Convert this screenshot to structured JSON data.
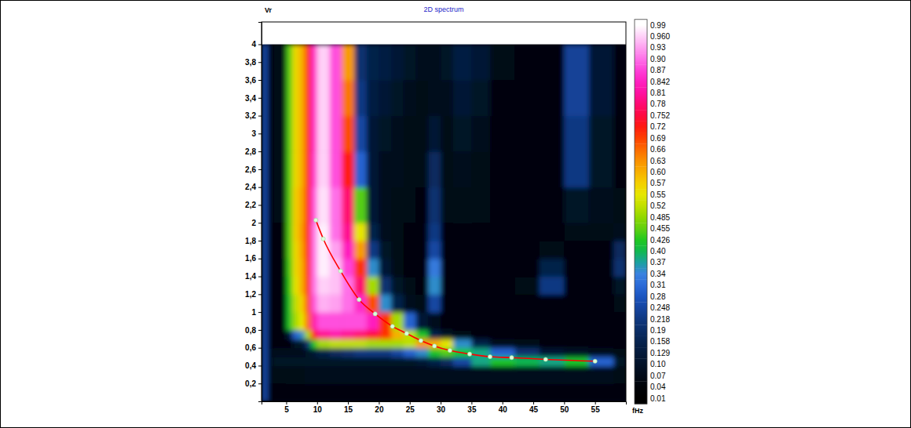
{
  "chart_data": {
    "type": "heatmap",
    "title": "2D spectrum",
    "x_label": "fHz",
    "y_label": "Vr",
    "xlim": [
      1,
      60
    ],
    "ylim": [
      0,
      4.25
    ],
    "xticks": [
      5,
      10,
      15,
      20,
      25,
      30,
      35,
      40,
      45,
      50,
      55
    ],
    "yticks": [
      {
        "value": 0.2,
        "label": "0,2"
      },
      {
        "value": 0.4,
        "label": "0,4"
      },
      {
        "value": 0.6,
        "label": "0,6"
      },
      {
        "value": 0.8,
        "label": "0,8"
      },
      1,
      {
        "value": 1.2,
        "label": "1,2"
      },
      {
        "value": 1.4,
        "label": "1,4"
      },
      {
        "value": 1.6,
        "label": "1,6"
      },
      {
        "value": 1.8,
        "label": "1,8"
      },
      2,
      {
        "value": 2.2,
        "label": "2,2"
      },
      {
        "value": 2.4,
        "label": "2,4"
      },
      {
        "value": 2.6,
        "label": "2,6"
      },
      {
        "value": 2.8,
        "label": "2,8"
      },
      3,
      {
        "value": 3.2,
        "label": "3,2"
      },
      {
        "value": 3.4,
        "label": "3,4"
      },
      {
        "value": 3.6,
        "label": "3,6"
      },
      {
        "value": 3.8,
        "label": "3,8"
      },
      4
    ],
    "x_edges": [
      1,
      2,
      3,
      5,
      6,
      7,
      8,
      9,
      10,
      12,
      14,
      16,
      18,
      20,
      22,
      24,
      26,
      28,
      30,
      32,
      35,
      38,
      42,
      46,
      50,
      54,
      58,
      60
    ],
    "y_edges": [
      0,
      0.2,
      0.4,
      0.5,
      0.6,
      0.7,
      0.8,
      1.0,
      1.2,
      1.4,
      1.6,
      1.8,
      2.0,
      2.4,
      2.8,
      3.2,
      3.6,
      4.0
    ],
    "cells": [
      [
        0.25,
        0.04,
        0.04,
        0.04,
        0.04,
        0.04,
        0.04,
        0.04,
        0.04,
        0.04,
        0.04,
        0.04,
        0.04,
        0.04,
        0.04,
        0.04,
        0.04,
        0.04,
        0.04,
        0.04,
        0.04,
        0.04,
        0.04,
        0.04,
        0.04,
        0.04,
        0.04
      ],
      [
        0.25,
        0.06,
        0.06,
        0.07,
        0.07,
        0.07,
        0.08,
        0.08,
        0.08,
        0.08,
        0.08,
        0.08,
        0.08,
        0.08,
        0.08,
        0.08,
        0.08,
        0.08,
        0.08,
        0.08,
        0.08,
        0.08,
        0.08,
        0.08,
        0.08,
        0.08,
        0.06
      ],
      [
        0.25,
        0.08,
        0.1,
        0.1,
        0.1,
        0.1,
        0.1,
        0.1,
        0.1,
        0.1,
        0.1,
        0.1,
        0.1,
        0.1,
        0.1,
        0.1,
        0.12,
        0.15,
        0.18,
        0.25,
        0.38,
        0.42,
        0.4,
        0.38,
        0.42,
        0.3,
        0.1
      ],
      [
        0.25,
        0.06,
        0.08,
        0.08,
        0.08,
        0.08,
        0.1,
        0.12,
        0.15,
        0.18,
        0.2,
        0.22,
        0.22,
        0.22,
        0.25,
        0.3,
        0.35,
        0.42,
        0.45,
        0.42,
        0.38,
        0.3,
        0.2,
        0.12,
        0.1,
        0.08,
        0.06
      ],
      [
        0.25,
        0.04,
        0.05,
        0.05,
        0.1,
        0.1,
        0.2,
        0.42,
        0.5,
        0.52,
        0.52,
        0.52,
        0.5,
        0.5,
        0.5,
        0.52,
        0.62,
        0.6,
        0.55,
        0.35,
        0.15,
        0.08,
        0.06,
        0.05,
        0.05,
        0.05,
        0.04
      ],
      [
        0.25,
        0.04,
        0.05,
        0.12,
        0.3,
        0.35,
        0.5,
        0.72,
        0.8,
        0.82,
        0.8,
        0.78,
        0.75,
        0.7,
        0.6,
        0.52,
        0.42,
        0.15,
        0.1,
        0.06,
        0.05,
        0.05,
        0.04,
        0.04,
        0.04,
        0.04,
        0.04
      ],
      [
        0.25,
        0.04,
        0.05,
        0.42,
        0.5,
        0.55,
        0.66,
        0.82,
        0.88,
        0.88,
        0.88,
        0.88,
        0.84,
        0.7,
        0.5,
        0.3,
        0.12,
        0.08,
        0.05,
        0.04,
        0.04,
        0.04,
        0.04,
        0.04,
        0.04,
        0.04,
        0.04
      ],
      [
        0.25,
        0.04,
        0.05,
        0.42,
        0.52,
        0.57,
        0.68,
        0.88,
        0.94,
        0.93,
        0.9,
        0.85,
        0.68,
        0.35,
        0.15,
        0.08,
        0.06,
        0.25,
        0.05,
        0.04,
        0.04,
        0.04,
        0.04,
        0.05,
        0.04,
        0.04,
        0.06
      ],
      [
        0.25,
        0.04,
        0.05,
        0.43,
        0.55,
        0.6,
        0.7,
        0.9,
        0.96,
        0.95,
        0.9,
        0.78,
        0.5,
        0.2,
        0.1,
        0.06,
        0.05,
        0.35,
        0.05,
        0.04,
        0.04,
        0.04,
        0.06,
        0.22,
        0.05,
        0.04,
        0.1
      ],
      [
        0.25,
        0.04,
        0.05,
        0.44,
        0.56,
        0.6,
        0.71,
        0.9,
        0.98,
        0.95,
        0.87,
        0.7,
        0.35,
        0.12,
        0.06,
        0.05,
        0.05,
        0.33,
        0.05,
        0.04,
        0.04,
        0.04,
        0.05,
        0.15,
        0.05,
        0.05,
        0.2
      ],
      [
        0.25,
        0.04,
        0.05,
        0.45,
        0.56,
        0.61,
        0.72,
        0.9,
        0.98,
        0.93,
        0.84,
        0.62,
        0.22,
        0.1,
        0.06,
        0.05,
        0.05,
        0.25,
        0.05,
        0.04,
        0.04,
        0.04,
        0.04,
        0.06,
        0.05,
        0.05,
        0.18
      ],
      [
        0.25,
        0.04,
        0.05,
        0.45,
        0.57,
        0.62,
        0.72,
        0.9,
        0.98,
        0.9,
        0.8,
        0.55,
        0.15,
        0.08,
        0.06,
        0.05,
        0.05,
        0.22,
        0.05,
        0.05,
        0.04,
        0.04,
        0.04,
        0.05,
        0.06,
        0.06,
        0.08
      ],
      [
        0.25,
        0.04,
        0.06,
        0.45,
        0.57,
        0.61,
        0.71,
        0.88,
        0.97,
        0.9,
        0.78,
        0.45,
        0.12,
        0.08,
        0.07,
        0.06,
        0.05,
        0.2,
        0.06,
        0.07,
        0.06,
        0.05,
        0.04,
        0.05,
        0.1,
        0.08,
        0.06
      ],
      [
        0.25,
        0.04,
        0.06,
        0.45,
        0.56,
        0.6,
        0.7,
        0.86,
        0.96,
        0.88,
        0.72,
        0.3,
        0.12,
        0.08,
        0.08,
        0.06,
        0.06,
        0.18,
        0.06,
        0.08,
        0.06,
        0.05,
        0.04,
        0.05,
        0.22,
        0.1,
        0.05
      ],
      [
        0.25,
        0.04,
        0.06,
        0.45,
        0.56,
        0.6,
        0.7,
        0.85,
        0.96,
        0.88,
        0.68,
        0.25,
        0.12,
        0.1,
        0.08,
        0.07,
        0.06,
        0.12,
        0.07,
        0.1,
        0.08,
        0.05,
        0.04,
        0.05,
        0.22,
        0.1,
        0.05
      ],
      [
        0.25,
        0.04,
        0.06,
        0.45,
        0.56,
        0.6,
        0.7,
        0.85,
        0.96,
        0.88,
        0.65,
        0.22,
        0.14,
        0.12,
        0.1,
        0.08,
        0.07,
        0.08,
        0.08,
        0.12,
        0.1,
        0.05,
        0.04,
        0.05,
        0.24,
        0.12,
        0.05
      ],
      [
        0.25,
        0.04,
        0.06,
        0.45,
        0.56,
        0.6,
        0.7,
        0.85,
        0.96,
        0.88,
        0.62,
        0.2,
        0.15,
        0.14,
        0.12,
        0.1,
        0.08,
        0.08,
        0.1,
        0.14,
        0.12,
        0.06,
        0.05,
        0.05,
        0.24,
        0.12,
        0.05
      ]
    ],
    "colorbar": {
      "range": [
        0.01,
        0.99
      ],
      "ticks": [
        0.01,
        0.04,
        0.07,
        {
          "value": 0.1,
          "label": "0.10"
        },
        0.129,
        0.158,
        0.19,
        0.218,
        0.248,
        0.28,
        0.31,
        0.34,
        0.37,
        {
          "value": 0.4,
          "label": "0.40"
        },
        0.426,
        0.455,
        0.485,
        0.52,
        0.55,
        0.57,
        {
          "value": 0.6,
          "label": "0.60"
        },
        0.63,
        0.66,
        0.69,
        0.72,
        0.752,
        0.78,
        0.81,
        0.842,
        0.87,
        {
          "value": 0.9,
          "label": "0.90"
        },
        0.93,
        {
          "value": 0.96,
          "label": "0.960"
        },
        0.99
      ]
    },
    "series": [
      {
        "type": "line",
        "color": "#ff0000",
        "marker": "circle",
        "x": [
          9.8,
          11,
          13.8,
          16.8,
          19.4,
          22.2,
          24.5,
          26.8,
          29,
          31.5,
          34.7,
          38,
          41.5,
          47,
          55
        ],
        "values": [
          2.03,
          1.82,
          1.46,
          1.14,
          0.98,
          0.84,
          0.76,
          0.68,
          0.62,
          0.57,
          0.53,
          0.5,
          0.49,
          0.47,
          0.45
        ]
      }
    ]
  }
}
